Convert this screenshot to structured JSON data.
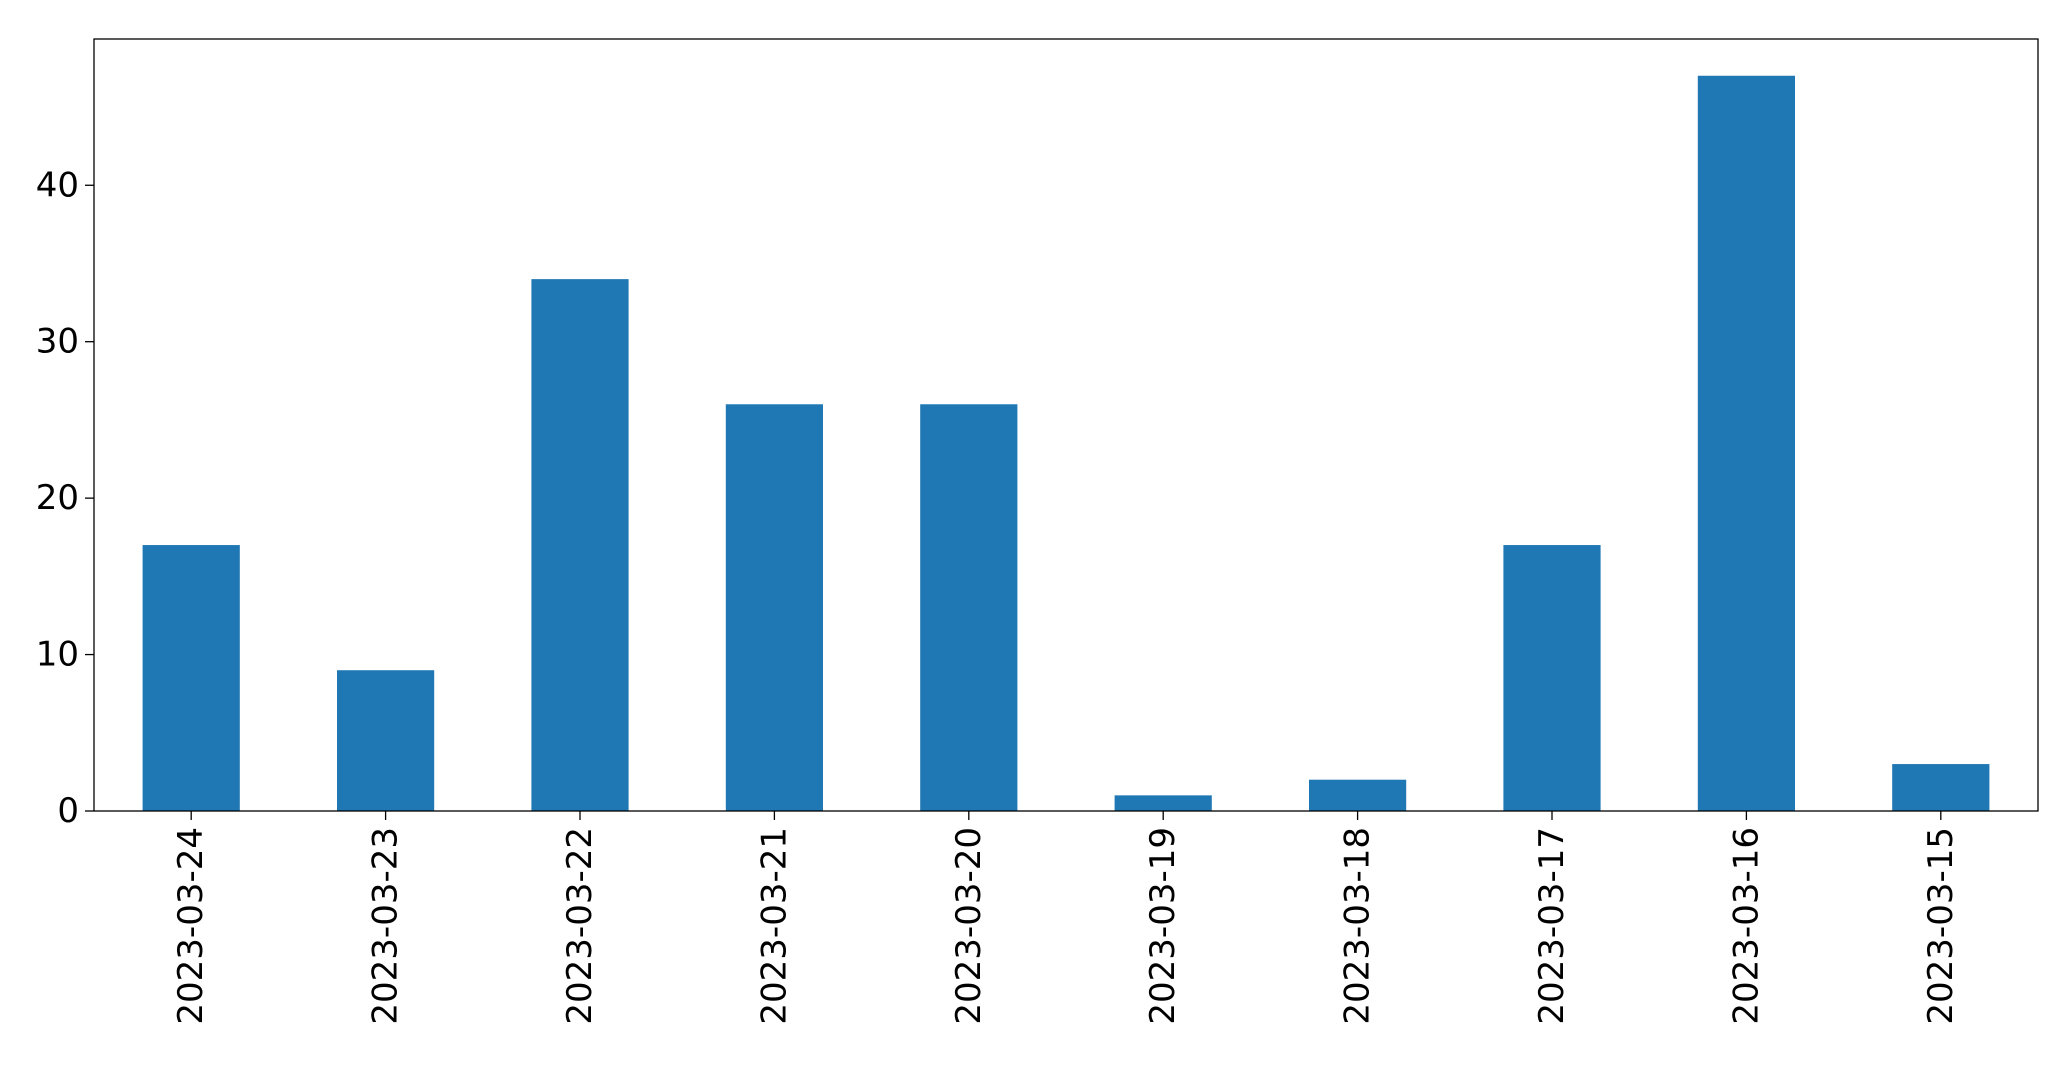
{
  "chart_data": {
    "type": "bar",
    "categories": [
      "2023-03-24",
      "2023-03-23",
      "2023-03-22",
      "2023-03-21",
      "2023-03-20",
      "2023-03-19",
      "2023-03-18",
      "2023-03-17",
      "2023-03-16",
      "2023-03-15"
    ],
    "values": [
      17,
      9,
      34,
      26,
      26,
      1,
      2,
      17,
      47,
      3
    ],
    "title": "",
    "xlabel": "",
    "ylabel": "",
    "ylim": [
      0,
      49.35
    ],
    "yticks": [
      0,
      10,
      20,
      30,
      40
    ],
    "grid": false,
    "legend": "none",
    "colors": {
      "bar": "#1f77b4",
      "axis": "#000000",
      "background": "#ffffff"
    }
  }
}
